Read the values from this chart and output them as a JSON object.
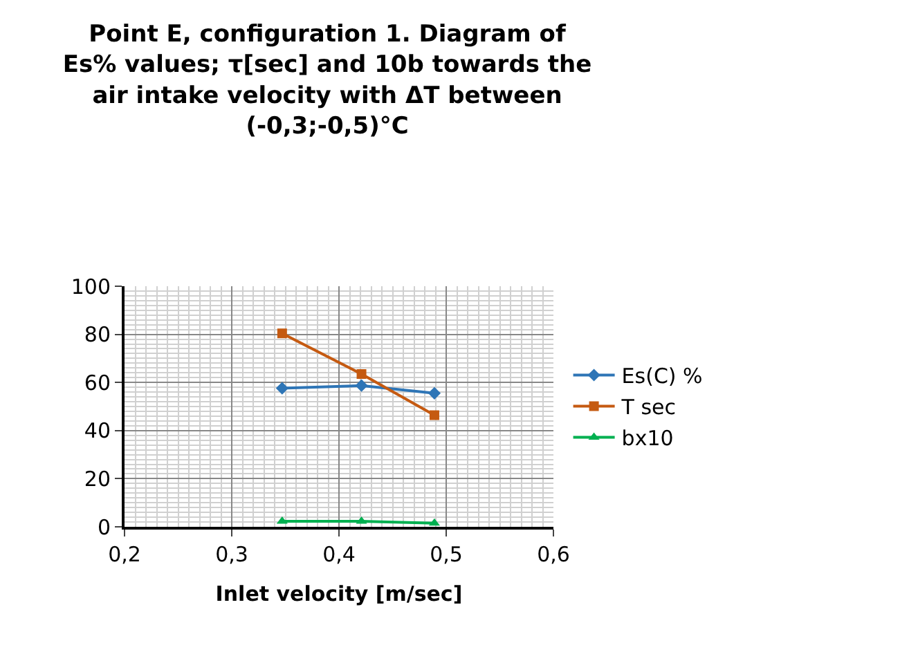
{
  "chart_data": {
    "type": "line",
    "title": "Point E, configuration 1. Diagram of Es% values; τ[sec] and 10b towards the air intake velocity with ΔT between (-0,3;-0,5)°C",
    "xlabel": "Inlet velocity [m/sec]",
    "x": [
      0.347,
      0.421,
      0.489
    ],
    "series": [
      {
        "name": "Es(C) %",
        "color": "#2e75b6",
        "marker": "diamond",
        "values": [
          57.6,
          58.7,
          55.5
        ]
      },
      {
        "name": "T sec",
        "color": "#c55a11",
        "marker": "square",
        "values": [
          80.4,
          63.5,
          46.4
        ]
      },
      {
        "name": "bx10",
        "color": "#00b050",
        "marker": "triangle",
        "values": [
          2.3,
          2.3,
          1.5
        ]
      }
    ],
    "xlim": [
      0.2,
      0.6
    ],
    "xticks": [
      {
        "value": 0.2,
        "label": "0,2"
      },
      {
        "value": 0.3,
        "label": "0,3"
      },
      {
        "value": 0.4,
        "label": "0,4"
      },
      {
        "value": 0.5,
        "label": "0,5"
      },
      {
        "value": 0.6,
        "label": "0,6"
      }
    ],
    "ylim": [
      0,
      100
    ],
    "yticks": [
      0,
      20,
      40,
      60,
      80,
      100
    ],
    "grid": true,
    "legend": "right",
    "line_style": "solid"
  }
}
